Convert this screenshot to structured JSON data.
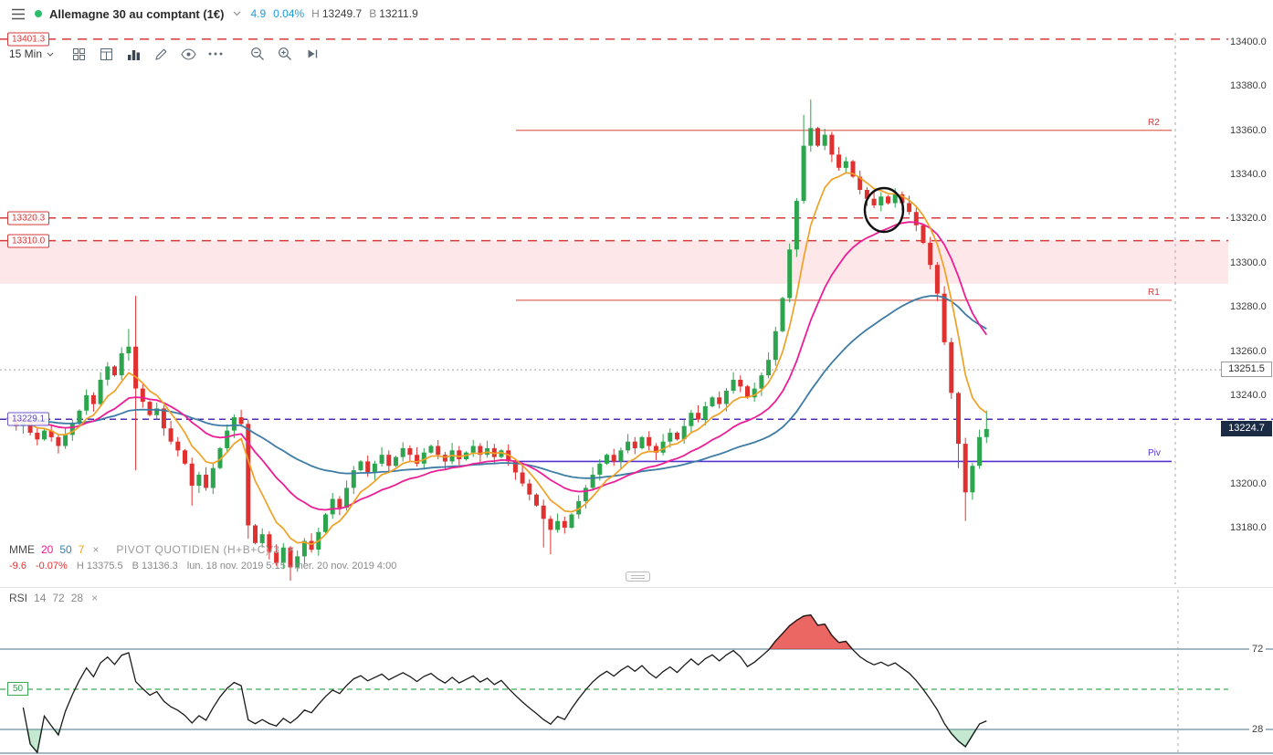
{
  "header": {
    "title": "Allemagne 30 au comptant (1€)",
    "change": "4.9",
    "change_pct": "0.04%",
    "high_label": "H",
    "high": "13249.7",
    "low_label": "B",
    "low": "13211.9"
  },
  "toolbar": {
    "interval": "15 Min"
  },
  "axis": {
    "ticks": [
      {
        "label": "13400.0",
        "price": 13400
      },
      {
        "label": "13380.0",
        "price": 13380
      },
      {
        "label": "13360.0",
        "price": 13360
      },
      {
        "label": "13340.0",
        "price": 13340
      },
      {
        "label": "13320.0",
        "price": 13320
      },
      {
        "label": "13300.0",
        "price": 13300
      },
      {
        "label": "13280.0",
        "price": 13280
      },
      {
        "label": "13260.0",
        "price": 13260
      },
      {
        "label": "13240.0",
        "price": 13240
      },
      {
        "label": "13200.0",
        "price": 13200
      },
      {
        "label": "13180.0",
        "price": 13180
      }
    ],
    "boxed": {
      "label": "13251.5",
      "price": 13251.5
    },
    "current": {
      "label": "13224.7",
      "price": 13224.7
    }
  },
  "left_labels": [
    {
      "label": "13401.3",
      "price": 13401.3,
      "style": "red"
    },
    {
      "label": "13320.3",
      "price": 13320.3,
      "style": "red"
    },
    {
      "label": "13310.0",
      "price": 13310.0,
      "style": "red"
    },
    {
      "label": "13229.1",
      "price": 13229.1,
      "style": "purple"
    }
  ],
  "pivot_labels": {
    "r2": "R2",
    "r1": "R1",
    "piv": "Piv"
  },
  "legend": {
    "mme": "MME",
    "p20": "20",
    "p50": "50",
    "p7": "7",
    "close_x": "×",
    "pivot": "PIVOT QUOTIDIEN (H+B+C)/3",
    "pivot_x": "×",
    "change": "-9.6",
    "change_pct": "-0.07%",
    "high_label": "H",
    "high": "13375.5",
    "low_label": "B",
    "low": "13136.3",
    "range": "lun. 18 nov. 2019 5:15 - mer. 20 nov. 2019 4:00"
  },
  "rsi_panel": {
    "label": "RSI",
    "period": "14",
    "upper": "72",
    "lower": "28",
    "close_x": "×",
    "mid_label": "50",
    "right_upper": "72",
    "right_lower": "28"
  },
  "chart_data": {
    "type": "candlestick",
    "instrument": "Allemagne 30 au comptant (1€)",
    "interval": "15 Min",
    "time_range": "lun. 18 nov. 2019 5:15 - mer. 20 nov. 2019 4:00",
    "price_range_visible": [
      13155,
      13405
    ],
    "closes": [
      13229,
      13226,
      13228,
      13223,
      13220,
      13224,
      13221,
      13217,
      13222,
      13227,
      13233,
      13240,
      13236,
      13247,
      13253,
      13249,
      13259,
      13262,
      13243,
      13237,
      13231,
      13234,
      13225,
      13219,
      13215,
      13209,
      13199,
      13204,
      13198,
      13207,
      13216,
      13224,
      13230,
      13227,
      13181,
      13173,
      13177,
      13169,
      13164,
      13171,
      13162,
      13167,
      13174,
      13170,
      13178,
      13186,
      13193,
      13189,
      13198,
      13206,
      13210,
      13205,
      13209,
      13213,
      13208,
      13212,
      13216,
      13213,
      13209,
      13214,
      13217,
      13213,
      13210,
      13215,
      13211,
      13214,
      13217,
      13213,
      13216,
      13212,
      13215,
      13210,
      13205,
      13200,
      13195,
      13190,
      13184,
      13179,
      13183,
      13180,
      13186,
      13192,
      13198,
      13204,
      13209,
      13213,
      13210,
      13215,
      13219,
      13216,
      13221,
      13217,
      13214,
      13219,
      13223,
      13220,
      13226,
      13232,
      13229,
      13235,
      13239,
      13236,
      13242,
      13247,
      13244,
      13239,
      13243,
      13249,
      13256,
      13269,
      13284,
      13306,
      13328,
      13353,
      13361,
      13353,
      13358,
      13349,
      13343,
      13346,
      13339,
      13333,
      13329,
      13326,
      13330,
      13327,
      13331,
      13327,
      13323,
      13317,
      13309,
      13299,
      13286,
      13264,
      13241,
      13218,
      13196,
      13208,
      13221,
      13224.7
    ],
    "wick_overrides": {
      "17": [
        13270,
        null
      ],
      "18": [
        13285,
        13206
      ],
      "26": [
        null,
        13190
      ],
      "34": [
        null,
        13175
      ],
      "40": [
        null,
        13156
      ],
      "76": [
        null,
        13171
      ],
      "77": [
        null,
        13168
      ],
      "113": [
        13367,
        null
      ],
      "114": [
        13374,
        null
      ],
      "135": [
        null,
        13207
      ],
      "136": [
        null,
        13183
      ],
      "139": [
        13233,
        null
      ]
    },
    "levels": {
      "resistance_dashed": [
        13401.3,
        13320.3,
        13310.0
      ],
      "zone": [
        13310.0,
        13290.5
      ],
      "dotted": 13251.5,
      "prev_dashed": 13229.1,
      "r2": 13360,
      "r1": 13283,
      "pivot": 13210,
      "current": 13224.7
    },
    "overlays": [
      {
        "name": "MME 50",
        "period": 50,
        "color": "#3e7ca6",
        "width": 1.8
      },
      {
        "name": "MME 20",
        "period": 20,
        "color": "#ec1e96",
        "width": 1.8
      },
      {
        "name": "MME 7",
        "period": 7,
        "color": "#f0a125",
        "width": 1.7
      }
    ],
    "rsi": {
      "period": 14,
      "upper": 72,
      "lower": 28,
      "mid": 50
    },
    "colors": {
      "up": "#2da44e",
      "down": "#e03131",
      "level_red": "#d63a3a",
      "pivot_purple": "#5633d0",
      "prev_dashed": "#4b2fae",
      "r_line": "#e2695e",
      "zone_fill": "rgba(242,120,130,0.18)",
      "rsi_line": "#1a1a1a",
      "rsi_bounds": "#4a7187",
      "rsi_mid": "#3cab55",
      "rsi_over_fill": "rgba(227,52,47,0.75)",
      "rsi_under_fill": "rgba(87,190,120,0.35)"
    }
  }
}
